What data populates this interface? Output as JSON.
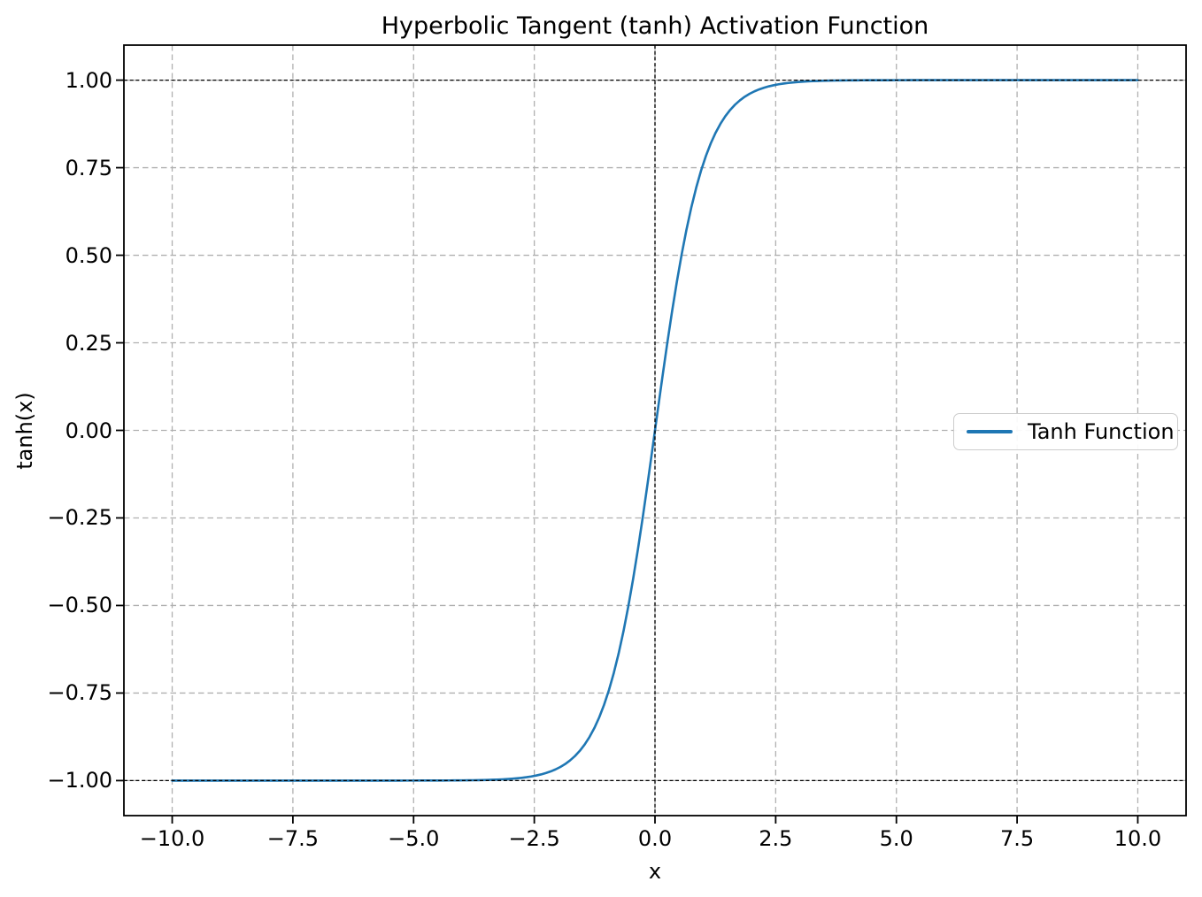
{
  "chart_data": {
    "type": "line",
    "title": "Hyperbolic Tangent (tanh) Activation Function",
    "xlabel": "x",
    "ylabel": "tanh(x)",
    "xlim": [
      -11,
      11
    ],
    "ylim": [
      -1.1,
      1.1
    ],
    "x_ticks": {
      "values": [
        -10.0,
        -7.5,
        -5.0,
        -2.5,
        0.0,
        2.5,
        5.0,
        7.5,
        10.0
      ],
      "labels": [
        "−10.0",
        "−7.5",
        "−5.0",
        "−2.5",
        "0.0",
        "2.5",
        "5.0",
        "7.5",
        "10.0"
      ]
    },
    "y_ticks": {
      "values": [
        -1.0,
        -0.75,
        -0.5,
        -0.25,
        0.0,
        0.25,
        0.5,
        0.75,
        1.0
      ],
      "labels": [
        "−1.00",
        "−0.75",
        "−0.50",
        "−0.25",
        "0.00",
        "0.25",
        "0.50",
        "0.75",
        "1.00"
      ]
    },
    "grid": {
      "visible": true,
      "style": "dashed",
      "color": "#b0b0b0"
    },
    "series": [
      {
        "name": "Tanh Function",
        "color": "#1f77b4",
        "function": "tanh",
        "x_start": -10,
        "x_end": 10,
        "num_points": 200,
        "sample_points": {
          "x": [
            -10,
            -9,
            -8,
            -7,
            -6,
            -5,
            -4,
            -3,
            -2,
            -1,
            0,
            1,
            2,
            3,
            4,
            5,
            6,
            7,
            8,
            9,
            10
          ],
          "y": [
            -1.0,
            -1.0,
            -1.0,
            -0.999998,
            -0.999988,
            -0.999909,
            -0.999329,
            -0.995055,
            -0.964028,
            -0.761594,
            0.0,
            0.761594,
            0.964028,
            0.995055,
            0.999329,
            0.999909,
            0.999988,
            0.999998,
            1.0,
            1.0,
            1.0
          ]
        }
      }
    ],
    "reference_lines": [
      {
        "orientation": "horizontal",
        "value": 1.0,
        "color": "#000000",
        "style": "dashed"
      },
      {
        "orientation": "horizontal",
        "value": -1.0,
        "color": "#000000",
        "style": "dashed"
      },
      {
        "orientation": "vertical",
        "value": 0.0,
        "color": "#000000",
        "style": "dashed"
      }
    ],
    "legend": {
      "label": "Tanh Function",
      "position": "center right"
    },
    "colors": {
      "line": "#1f77b4",
      "grid": "#b0b0b0",
      "reference": "#000000",
      "spine": "#000000"
    }
  }
}
